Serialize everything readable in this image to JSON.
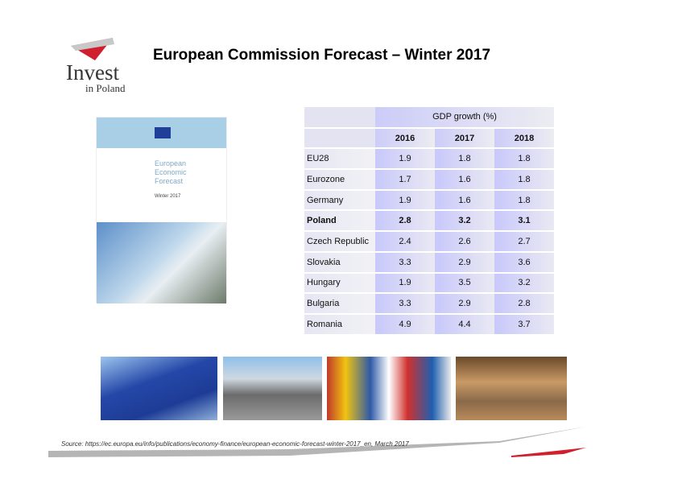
{
  "logo": {
    "line1": "Invest",
    "line2": "in Poland",
    "colors": [
      "#d0202e",
      "#c0c0c0"
    ]
  },
  "title": "European Commission Forecast – Winter 2017",
  "cover": {
    "lines": [
      "European",
      "Economic",
      "Forecast"
    ],
    "edition": "Winter 2017"
  },
  "table": {
    "group_header": "GDP growth  (%)",
    "years": [
      "2016",
      "2017",
      "2018"
    ],
    "rows": [
      {
        "country": "EU28",
        "values": [
          "1.9",
          "1.8",
          "1.8"
        ]
      },
      {
        "country": "Eurozone",
        "values": [
          "1.7",
          "1.6",
          "1.8"
        ]
      },
      {
        "country": "Germany",
        "values": [
          "1.9",
          "1.6",
          "1.8"
        ]
      },
      {
        "country": "Poland",
        "values": [
          "2.8",
          "3.2",
          "3.1"
        ],
        "bold": true
      },
      {
        "country": "Czech Republic",
        "values": [
          "2.4",
          "2.6",
          "2.7"
        ]
      },
      {
        "country": "Slovakia",
        "values": [
          "3.3",
          "2.9",
          "3.6"
        ]
      },
      {
        "country": "Hungary",
        "values": [
          "1.9",
          "3.5",
          "3.2"
        ]
      },
      {
        "country": "Bulgaria",
        "values": [
          "3.3",
          "2.9",
          "2.8"
        ]
      },
      {
        "country": "Romania",
        "values": [
          "4.9",
          "4.4",
          "3.7"
        ]
      }
    ]
  },
  "source": "Source: https://ec.europa.eu/info/publications/economy-finance/european-economic-forecast-winter-2017_en, March 2017"
}
